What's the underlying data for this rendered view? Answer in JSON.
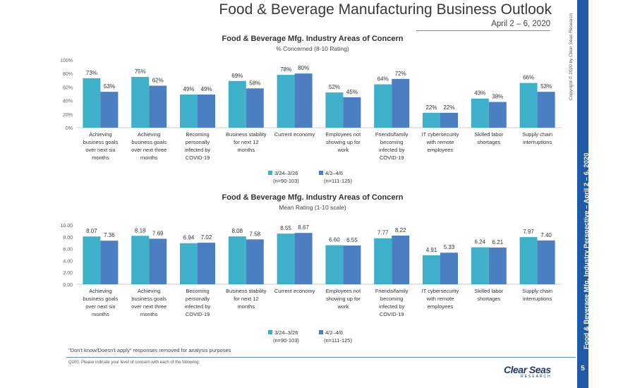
{
  "header": {
    "title": "Food & Beverage Manufacturing Business Outlook",
    "date": "April 2 – 6, 2020"
  },
  "sidebar": {
    "vertical_title": "Food & Beverage Mfg. Industry Perspective – April 2 – 6, 2020",
    "copyright": "Copyright © 2020 by Clear Seas Research",
    "page_number": "5"
  },
  "footer": {
    "note": "\"Don't know/Doesn't apply\" responses removed for analysis purposes",
    "question": "Q100.  Please indicate your level of concern with each of the following:",
    "logo_main": "Clear Seas",
    "logo_sub": "RESEARCH"
  },
  "colors": {
    "series1": "#3fb0c9",
    "series2": "#4b7fc2",
    "accent": "#1f5aa6"
  },
  "chart_data": [
    {
      "type": "bar",
      "title": "Food & Beverage Mfg. Industry Areas of Concern",
      "subtitle": "% Concerned (8-10 Rating)",
      "categories": [
        [
          "Achieving",
          "business goals",
          "over next six",
          "months"
        ],
        [
          "Achieving",
          "business goals",
          "over next three",
          "months"
        ],
        [
          "Becoming",
          "personally",
          "infected by",
          "COVID-19"
        ],
        [
          "Business stability",
          "for next 12",
          "months"
        ],
        [
          "Current economy"
        ],
        [
          "Employees not",
          "showing up for",
          "work"
        ],
        [
          "Friends/family",
          "becoming",
          "infected by",
          "COVID-19"
        ],
        [
          "IT cybersecurity",
          "with remote",
          "employees"
        ],
        [
          "Skilled labor",
          "shortages"
        ],
        [
          "Supply chain",
          "interruptions"
        ]
      ],
      "series": [
        {
          "name": "3/24–3/26",
          "n": "(n=90-103)",
          "values": [
            73,
            75,
            49,
            69,
            78,
            52,
            64,
            22,
            43,
            66
          ],
          "labels": [
            "73%",
            "75%",
            "49%",
            "69%",
            "78%",
            "52%",
            "64%",
            "22%",
            "43%",
            "66%"
          ]
        },
        {
          "name": "4/2–4/6",
          "n": "(n=111-125)",
          "values": [
            53,
            62,
            49,
            58,
            80,
            45,
            72,
            22,
            38,
            53
          ],
          "labels": [
            "53%",
            "62%",
            "49%",
            "58%",
            "80%",
            "45%",
            "72%",
            "22%",
            "38%",
            "53%"
          ]
        }
      ],
      "ylim": [
        0,
        100
      ],
      "yticks": [
        0,
        20,
        40,
        60,
        80,
        100
      ],
      "ytick_labels": [
        "0%",
        "20%",
        "40%",
        "60%",
        "80%",
        "100%"
      ],
      "grid": false,
      "legend": "bottom"
    },
    {
      "type": "bar",
      "title": "Food & Beverage Mfg. Industry Areas of Concern",
      "subtitle": "Mean Rating (1-10 scale)",
      "categories": [
        [
          "Achieving",
          "business goals",
          "over next six",
          "months"
        ],
        [
          "Achieving",
          "business goals",
          "over next three",
          "months"
        ],
        [
          "Becoming",
          "personally",
          "infected by",
          "COVID-19"
        ],
        [
          "Business stability",
          "for next 12",
          "months"
        ],
        [
          "Current economy"
        ],
        [
          "Employees not",
          "showing up for",
          "work"
        ],
        [
          "Friends/family",
          "becoming",
          "infected by",
          "COVID-19"
        ],
        [
          "IT cybersecurity",
          "with remote",
          "employees"
        ],
        [
          "Skilled labor",
          "shortages"
        ],
        [
          "Supply chain",
          "interruptions"
        ]
      ],
      "series": [
        {
          "name": "3/24–3/26",
          "n": "(n=90-103)",
          "values": [
            8.07,
            8.18,
            6.94,
            8.08,
            8.55,
            6.6,
            7.77,
            4.91,
            6.24,
            7.97
          ],
          "labels": [
            "8.07",
            "8.18",
            "6.94",
            "8.08",
            "8.55",
            "6.60",
            "7.77",
            "4.91",
            "6.24",
            "7.97"
          ]
        },
        {
          "name": "4/2–4/6",
          "n": "(n=111-125)",
          "values": [
            7.36,
            7.69,
            7.02,
            7.58,
            8.67,
            6.55,
            8.22,
            5.33,
            6.21,
            7.4
          ],
          "labels": [
            "7.36",
            "7.69",
            "7.02",
            "7.58",
            "8.67",
            "6.55",
            "8.22",
            "5.33",
            "6.21",
            "7.40"
          ]
        }
      ],
      "ylim": [
        0,
        10
      ],
      "yticks": [
        0,
        2,
        4,
        6,
        8,
        10
      ],
      "ytick_labels": [
        "0.00",
        "2.00",
        "4.00",
        "6.00",
        "8.00",
        "10.00"
      ],
      "grid": false,
      "legend": "bottom"
    }
  ]
}
